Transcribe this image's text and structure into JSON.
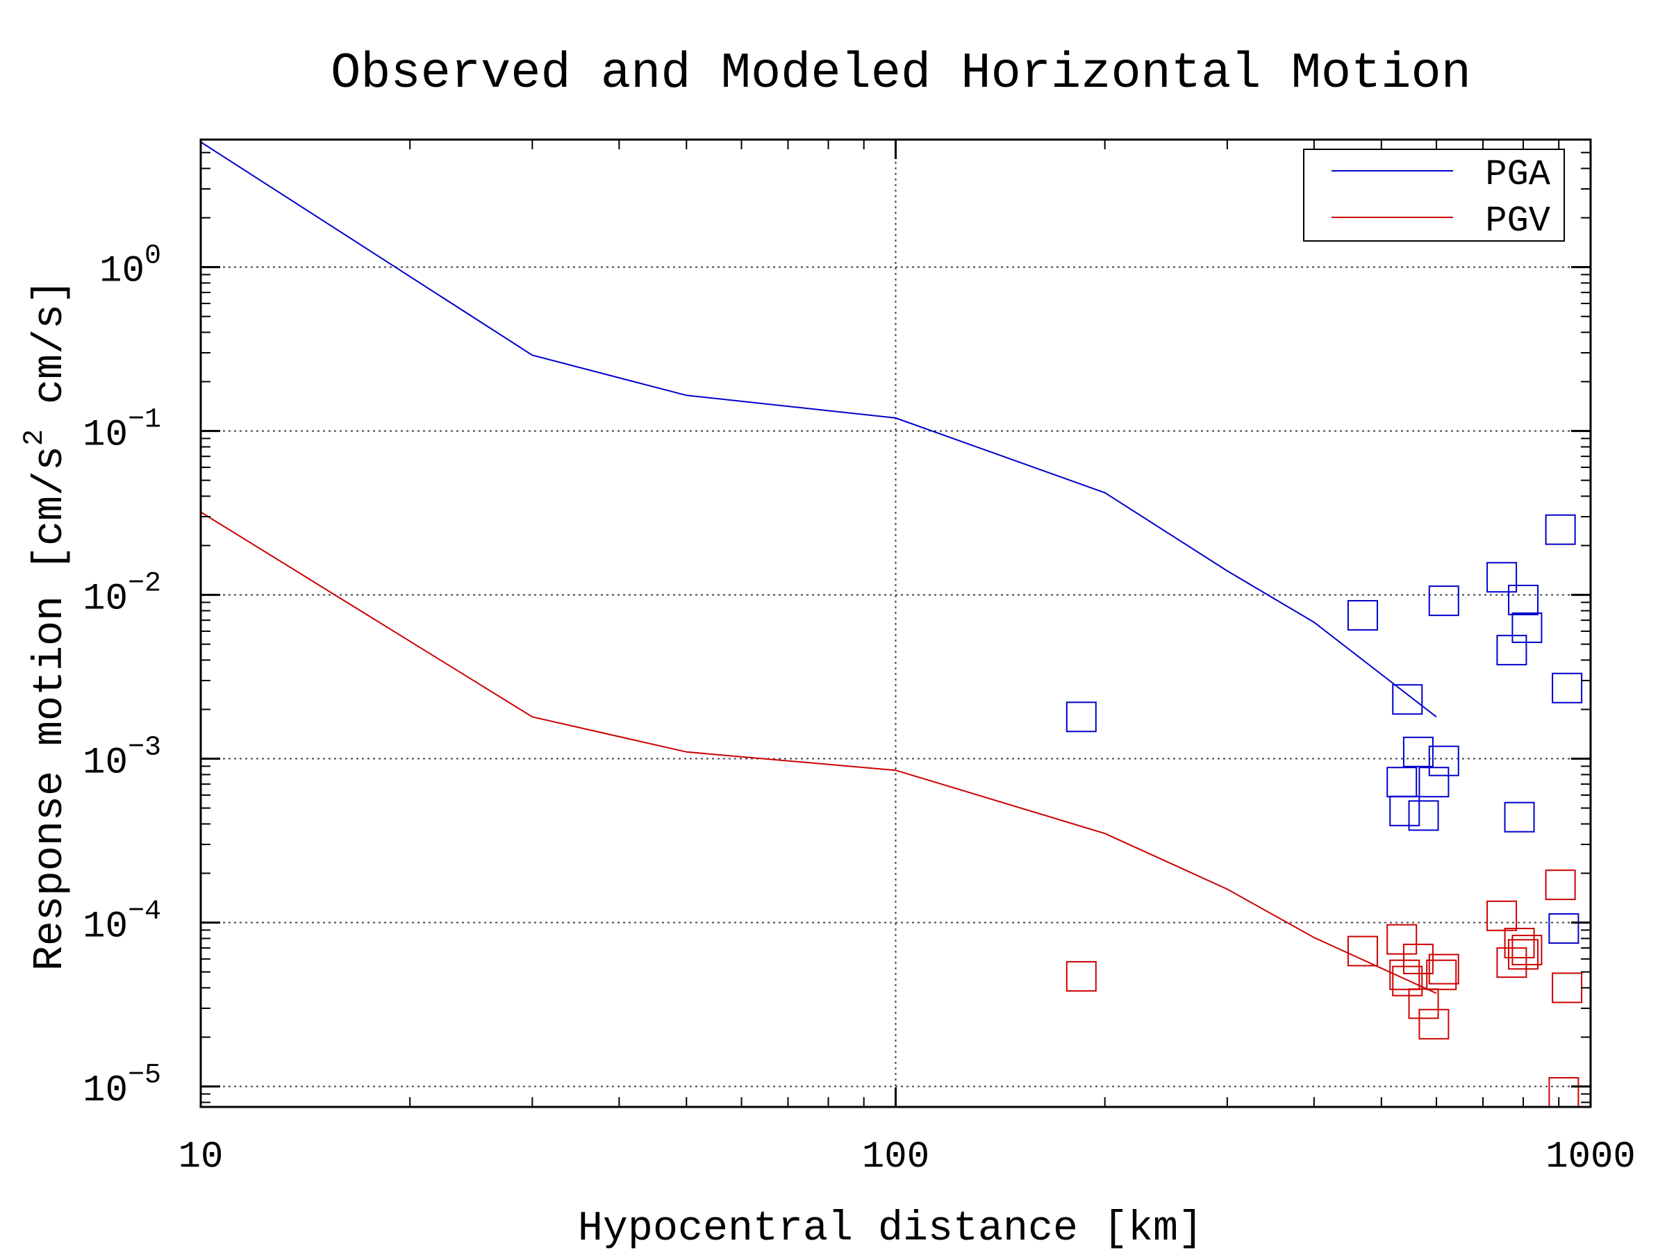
{
  "chart_data": {
    "type": "scatter",
    "title": "Observed and Modeled Horizontal Motion",
    "xlabel": "Hypocentral distance [km]",
    "ylabel": {
      "prefix": "Response motion [cm/s",
      "superscript": "2",
      "suffix": " cm/s]"
    },
    "x_scale": "log",
    "y_scale": "log",
    "xlim": [
      10,
      1000
    ],
    "ylim": [
      7.5e-06,
      6
    ],
    "grid": true,
    "legend_position": "top-right",
    "x_ticks": [
      {
        "value": 10,
        "label": "10"
      },
      {
        "value": 100,
        "label": "100"
      },
      {
        "value": 1000,
        "label": "1000"
      }
    ],
    "y_ticks": [
      {
        "value": 1,
        "base": "10",
        "exp": "0"
      },
      {
        "value": 0.1,
        "base": "10",
        "exp": "−1"
      },
      {
        "value": 0.01,
        "base": "10",
        "exp": "−2"
      },
      {
        "value": 0.001,
        "base": "10",
        "exp": "−3"
      },
      {
        "value": 0.0001,
        "base": "10",
        "exp": "−4"
      },
      {
        "value": 1e-05,
        "base": "10",
        "exp": "−5"
      }
    ],
    "lines": [
      {
        "name": "PGA",
        "color": "#0000cc",
        "points": [
          [
            10,
            5.8
          ],
          [
            30,
            0.29
          ],
          [
            50,
            0.165
          ],
          [
            100,
            0.12
          ],
          [
            200,
            0.042
          ],
          [
            300,
            0.014
          ],
          [
            400,
            0.0068
          ],
          [
            600,
            0.0018
          ]
        ]
      },
      {
        "name": "PGV",
        "color": "#cc0000",
        "points": [
          [
            10,
            0.032
          ],
          [
            30,
            0.0018
          ],
          [
            50,
            0.0011
          ],
          [
            100,
            0.00085
          ],
          [
            200,
            0.00035
          ],
          [
            300,
            0.00016
          ],
          [
            400,
            8.1e-05
          ],
          [
            600,
            3.7e-05
          ]
        ]
      }
    ],
    "observations": [
      {
        "name": "PGA",
        "color": "#0000cc",
        "points": [
          [
            185,
            0.0018
          ],
          [
            470,
            0.0075
          ],
          [
            535,
            0.00072
          ],
          [
            540,
            0.00048
          ],
          [
            545,
            0.0023
          ],
          [
            565,
            0.0011
          ],
          [
            575,
            0.00045
          ],
          [
            595,
            0.00072
          ],
          [
            615,
            0.00097
          ],
          [
            615,
            0.0092
          ],
          [
            745,
            0.0128
          ],
          [
            770,
            0.0046
          ],
          [
            790,
            0.00044
          ],
          [
            800,
            0.0093
          ],
          [
            810,
            0.0063
          ],
          [
            905,
            0.025
          ],
          [
            915,
            9.2e-05
          ],
          [
            925,
            0.0027
          ]
        ]
      },
      {
        "name": "PGV",
        "color": "#cc0000",
        "points": [
          [
            185,
            4.7e-05
          ],
          [
            470,
            6.7e-05
          ],
          [
            535,
            7.9e-05
          ],
          [
            540,
            4.8e-05
          ],
          [
            545,
            4.4e-05
          ],
          [
            565,
            6e-05
          ],
          [
            575,
            3.2e-05
          ],
          [
            595,
            2.4e-05
          ],
          [
            610,
            4.8e-05
          ],
          [
            615,
            5.2e-05
          ],
          [
            745,
            0.00011
          ],
          [
            770,
            5.7e-05
          ],
          [
            790,
            7.5e-05
          ],
          [
            800,
            6.4e-05
          ],
          [
            810,
            6.8e-05
          ],
          [
            905,
            0.00017
          ],
          [
            915,
            9.2e-06
          ],
          [
            925,
            4e-05
          ]
        ]
      }
    ]
  }
}
